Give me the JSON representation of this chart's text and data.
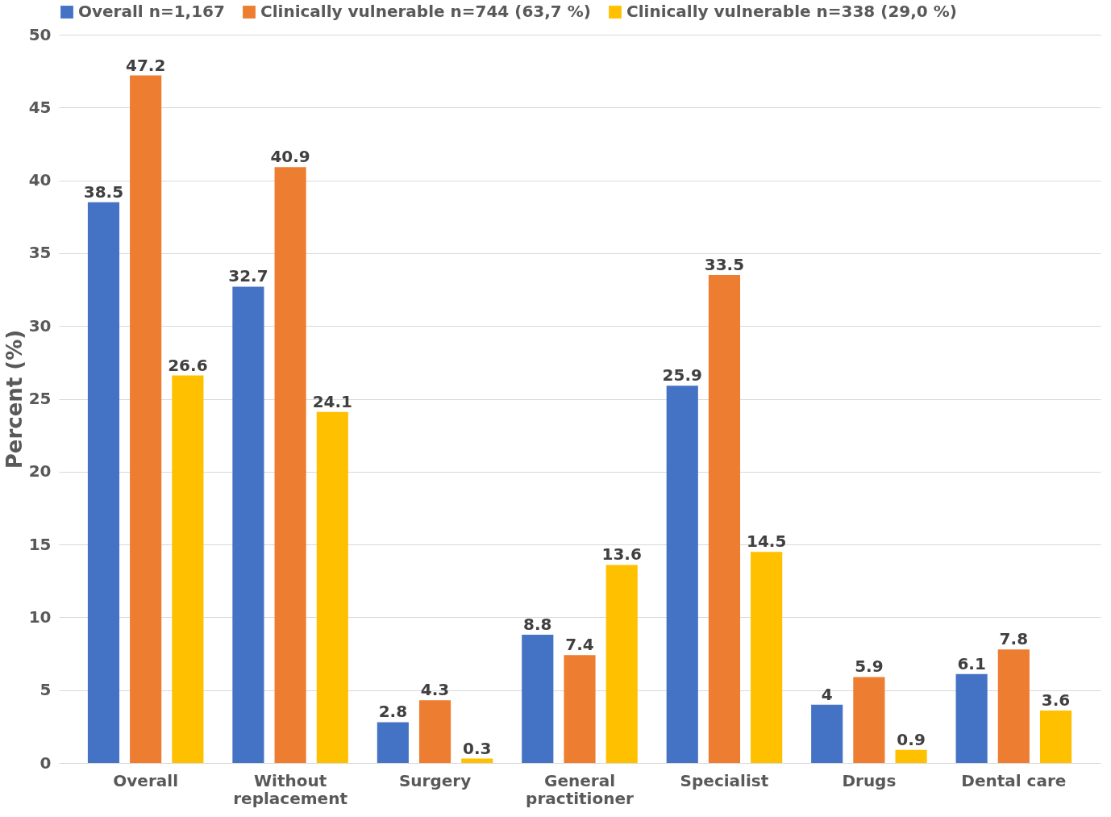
{
  "chart_data": {
    "type": "bar",
    "ylabel": "Percent (%)",
    "categories": [
      "Overall",
      "Without replacement",
      "Surgery",
      "General practitioner",
      "Specialist",
      "Drugs",
      "Dental care"
    ],
    "series": [
      {
        "name": "Overall n=1,167",
        "color": "#4472c4",
        "values": [
          38.5,
          32.7,
          2.8,
          8.8,
          25.9,
          4,
          6.1
        ]
      },
      {
        "name": "Clinically vulnerable n=744 (63,7 %)",
        "color": "#ed7d31",
        "values": [
          47.2,
          40.9,
          4.3,
          7.4,
          33.5,
          5.9,
          7.8
        ]
      },
      {
        "name": "Clinically vulnerable n=338 (29,0 %)",
        "color": "#ffc000",
        "values": [
          26.6,
          24.1,
          0.3,
          13.6,
          14.5,
          0.9,
          3.6
        ]
      }
    ],
    "ylim": [
      0,
      50
    ],
    "yticks": [
      0,
      5,
      10,
      15,
      20,
      25,
      30,
      35,
      40,
      45,
      50
    ],
    "grid": "y",
    "legend": "top",
    "data_labels": true
  }
}
